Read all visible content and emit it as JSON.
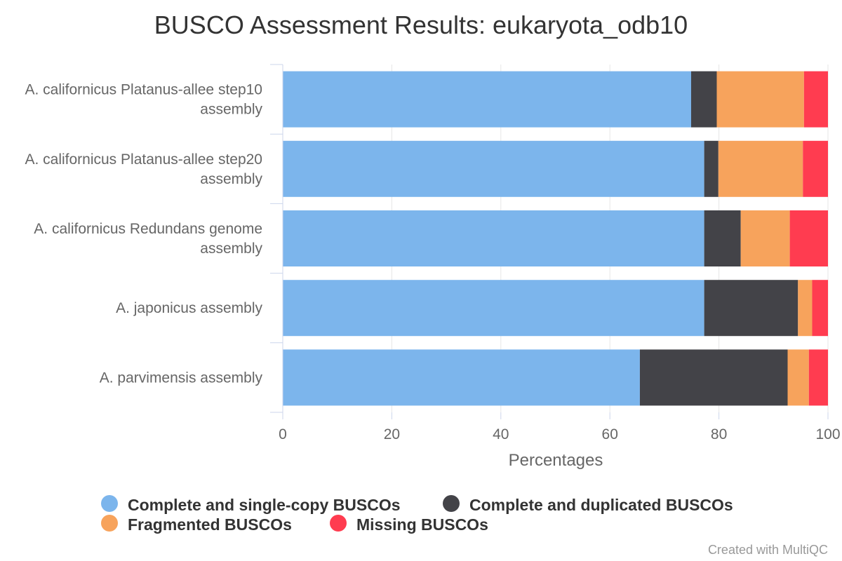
{
  "chart_data": {
    "type": "bar",
    "orientation": "horizontal",
    "stacked": true,
    "title": "BUSCO Assessment Results: eukaryota_odb10",
    "xlabel": "Percentages",
    "ylabel": "",
    "xlim": [
      0,
      100
    ],
    "ticks": [
      "0",
      "20",
      "40",
      "60",
      "80",
      "100"
    ],
    "grid": true,
    "legend_position": "bottom",
    "categories": [
      [
        "A. californicus Platanus-allee step10",
        "assembly"
      ],
      [
        "A. californicus Platanus-allee step20",
        "assembly"
      ],
      [
        "A. californicus Redundans genome",
        "assembly"
      ],
      [
        "A. japonicus assembly"
      ],
      [
        "A. parvimensis assembly"
      ]
    ],
    "series": [
      {
        "name": "Complete and single-copy BUSCOs",
        "color": "#7cb5ec",
        "values": [
          74.9,
          77.3,
          77.3,
          77.3,
          65.5
        ]
      },
      {
        "name": "Complete and duplicated BUSCOs",
        "color": "#434348",
        "values": [
          4.7,
          2.6,
          6.7,
          17.2,
          27.1
        ]
      },
      {
        "name": "Fragmented BUSCOs",
        "color": "#f7a35c",
        "values": [
          16.0,
          15.5,
          9.0,
          2.6,
          3.9
        ]
      },
      {
        "name": "Missing BUSCOs",
        "color": "#ff3c50",
        "values": [
          4.4,
          4.6,
          7.0,
          2.9,
          3.5
        ]
      }
    ]
  },
  "credit": "Created with MultiQC"
}
